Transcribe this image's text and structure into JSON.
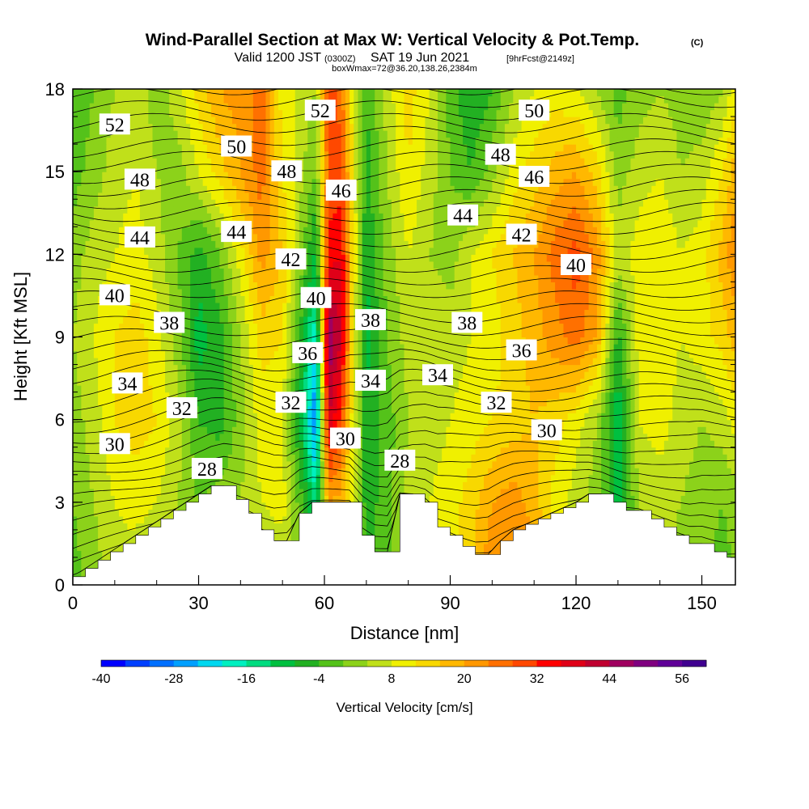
{
  "chart_data": {
    "type": "heatmap",
    "title": "Wind-Parallel Section at Max W: Vertical Velocity & Pot.Temp.",
    "title_mark": "(C)",
    "subtitle": {
      "valid_prefix": "Valid 1200 JST",
      "utc": "(0300Z)",
      "date": "SAT 19 Jun 2021",
      "forecast": "[9hrFcst@2149z]"
    },
    "box_info": "boxWmax=72@36.20,138.26,2384m",
    "xlabel": "Distance [nm]",
    "ylabel": "Height [Kft MSL]",
    "xlim": [
      0,
      158
    ],
    "ylim": [
      0,
      18
    ],
    "x_ticks": [
      0,
      30,
      60,
      90,
      120,
      150
    ],
    "x_minor_step": 10,
    "y_ticks": [
      0,
      3,
      6,
      9,
      12,
      15,
      18
    ],
    "y_minor_step": 1,
    "terrain": {
      "x": [
        0,
        3,
        6,
        9,
        12,
        15,
        18,
        21,
        24,
        27,
        30,
        33,
        36,
        39,
        42,
        45,
        48,
        51,
        54,
        57,
        60,
        63,
        66,
        69,
        72,
        75,
        78,
        81,
        84,
        87,
        90,
        93,
        96,
        99,
        102,
        105,
        108,
        111,
        114,
        117,
        120,
        123,
        126,
        129,
        132,
        135,
        138,
        141,
        144,
        147,
        150,
        153,
        156,
        158
      ],
      "h": [
        0.3,
        0.6,
        0.9,
        1.2,
        1.5,
        1.8,
        2.1,
        2.4,
        2.7,
        3.0,
        3.3,
        3.6,
        3.6,
        3.1,
        2.6,
        2.0,
        1.6,
        1.6,
        2.6,
        3.0,
        3.0,
        3.0,
        3.0,
        1.8,
        1.2,
        1.2,
        3.3,
        3.3,
        3.0,
        2.1,
        1.8,
        1.4,
        1.1,
        1.1,
        1.6,
        2.0,
        2.2,
        2.4,
        2.6,
        2.8,
        3.0,
        3.3,
        3.3,
        3.0,
        2.7,
        2.7,
        2.4,
        2.1,
        1.8,
        1.5,
        1.5,
        1.2,
        1.0,
        1.0
      ]
    },
    "vertical_velocity": {
      "units": "cm/s",
      "label": "Vertical Velocity [cm/s]",
      "x": [
        0,
        5,
        10,
        15,
        20,
        25,
        30,
        35,
        40,
        45,
        50,
        55,
        58,
        61,
        64,
        67,
        70,
        75,
        80,
        85,
        90,
        95,
        100,
        105,
        110,
        115,
        120,
        125,
        130,
        135,
        140,
        145,
        150,
        155,
        158
      ],
      "y": [
        0,
        3,
        6,
        9,
        12,
        15,
        18
      ],
      "w": [
        [
          -2,
          2,
          6,
          4,
          0,
          2,
          4,
          6,
          2,
          0,
          4,
          2,
          -6,
          8,
          12,
          4,
          -4,
          0,
          4,
          6,
          10,
          16,
          24,
          26,
          22,
          12,
          4,
          0,
          -6,
          2,
          4,
          2,
          0,
          -2,
          0
        ],
        [
          0,
          4,
          8,
          10,
          8,
          4,
          0,
          2,
          4,
          8,
          10,
          -4,
          -14,
          20,
          18,
          6,
          -6,
          -2,
          6,
          8,
          10,
          14,
          20,
          22,
          18,
          10,
          6,
          2,
          -10,
          4,
          6,
          4,
          2,
          0,
          2
        ],
        [
          2,
          6,
          12,
          14,
          12,
          6,
          -4,
          -6,
          2,
          10,
          8,
          -12,
          -30,
          40,
          30,
          8,
          -8,
          -2,
          4,
          6,
          8,
          10,
          12,
          14,
          16,
          14,
          10,
          4,
          -12,
          8,
          10,
          6,
          4,
          6,
          10
        ],
        [
          4,
          8,
          12,
          14,
          10,
          2,
          -10,
          -6,
          4,
          14,
          12,
          -8,
          -20,
          48,
          40,
          10,
          -10,
          0,
          6,
          8,
          6,
          8,
          10,
          14,
          18,
          22,
          26,
          20,
          -6,
          10,
          12,
          8,
          10,
          14,
          18
        ],
        [
          2,
          6,
          8,
          10,
          6,
          0,
          -6,
          0,
          10,
          22,
          16,
          0,
          -10,
          34,
          36,
          12,
          -8,
          2,
          8,
          4,
          2,
          8,
          12,
          16,
          20,
          26,
          30,
          22,
          6,
          10,
          12,
          8,
          10,
          18,
          24
        ],
        [
          -2,
          2,
          6,
          8,
          4,
          2,
          8,
          14,
          20,
          26,
          12,
          4,
          0,
          28,
          30,
          10,
          -6,
          4,
          12,
          6,
          0,
          -4,
          2,
          10,
          14,
          18,
          20,
          14,
          2,
          6,
          8,
          4,
          6,
          12,
          18
        ],
        [
          -4,
          0,
          4,
          6,
          2,
          6,
          14,
          20,
          22,
          26,
          10,
          6,
          4,
          30,
          26,
          8,
          -4,
          6,
          14,
          8,
          -2,
          -8,
          -4,
          4,
          8,
          10,
          8,
          4,
          -2,
          2,
          4,
          2,
          0,
          4,
          10
        ]
      ]
    },
    "colorbar": {
      "min": -40,
      "max": 60,
      "step": 4,
      "tick_labels": [
        -40,
        -28,
        -16,
        -4,
        8,
        20,
        32,
        44,
        56
      ],
      "colors": [
        "#0000ff",
        "#0040ff",
        "#0070ff",
        "#00a0ff",
        "#00d8f0",
        "#00f0c0",
        "#00dc80",
        "#00c040",
        "#22b022",
        "#54c21a",
        "#8cd21a",
        "#c0e01a",
        "#f0f000",
        "#f8d800",
        "#ffb800",
        "#ff9800",
        "#ff7000",
        "#ff4800",
        "#ff0000",
        "#e00018",
        "#c00030",
        "#a00060",
        "#800080",
        "#600098",
        "#400090"
      ]
    },
    "potential_temperature": {
      "units": "C",
      "contour_labels": [
        {
          "x": 10,
          "y": 16.7,
          "text": "52"
        },
        {
          "x": 59,
          "y": 17.2,
          "text": "52"
        },
        {
          "x": 110,
          "y": 17.2,
          "text": "50"
        },
        {
          "x": 39,
          "y": 15.9,
          "text": "50"
        },
        {
          "x": 102,
          "y": 15.6,
          "text": "48"
        },
        {
          "x": 16,
          "y": 14.7,
          "text": "48"
        },
        {
          "x": 51,
          "y": 15.0,
          "text": "48"
        },
        {
          "x": 64,
          "y": 14.3,
          "text": "46"
        },
        {
          "x": 110,
          "y": 14.8,
          "text": "46"
        },
        {
          "x": 93,
          "y": 13.4,
          "text": "44"
        },
        {
          "x": 16,
          "y": 12.6,
          "text": "44"
        },
        {
          "x": 39,
          "y": 12.8,
          "text": "44"
        },
        {
          "x": 107,
          "y": 12.7,
          "text": "42"
        },
        {
          "x": 52,
          "y": 11.8,
          "text": "42"
        },
        {
          "x": 120,
          "y": 11.6,
          "text": "40"
        },
        {
          "x": 10,
          "y": 10.5,
          "text": "40"
        },
        {
          "x": 58,
          "y": 10.4,
          "text": "40"
        },
        {
          "x": 23,
          "y": 9.5,
          "text": "38"
        },
        {
          "x": 71,
          "y": 9.6,
          "text": "38"
        },
        {
          "x": 94,
          "y": 9.5,
          "text": "38"
        },
        {
          "x": 107,
          "y": 8.5,
          "text": "36"
        },
        {
          "x": 56,
          "y": 8.4,
          "text": "36"
        },
        {
          "x": 13,
          "y": 7.3,
          "text": "34"
        },
        {
          "x": 71,
          "y": 7.4,
          "text": "34"
        },
        {
          "x": 87,
          "y": 7.6,
          "text": "34"
        },
        {
          "x": 26,
          "y": 6.4,
          "text": "32"
        },
        {
          "x": 52,
          "y": 6.6,
          "text": "32"
        },
        {
          "x": 101,
          "y": 6.6,
          "text": "32"
        },
        {
          "x": 113,
          "y": 5.6,
          "text": "30"
        },
        {
          "x": 10,
          "y": 5.1,
          "text": "30"
        },
        {
          "x": 65,
          "y": 5.3,
          "text": "30"
        },
        {
          "x": 78,
          "y": 4.5,
          "text": "28"
        },
        {
          "x": 32,
          "y": 4.2,
          "text": "28"
        }
      ]
    }
  }
}
